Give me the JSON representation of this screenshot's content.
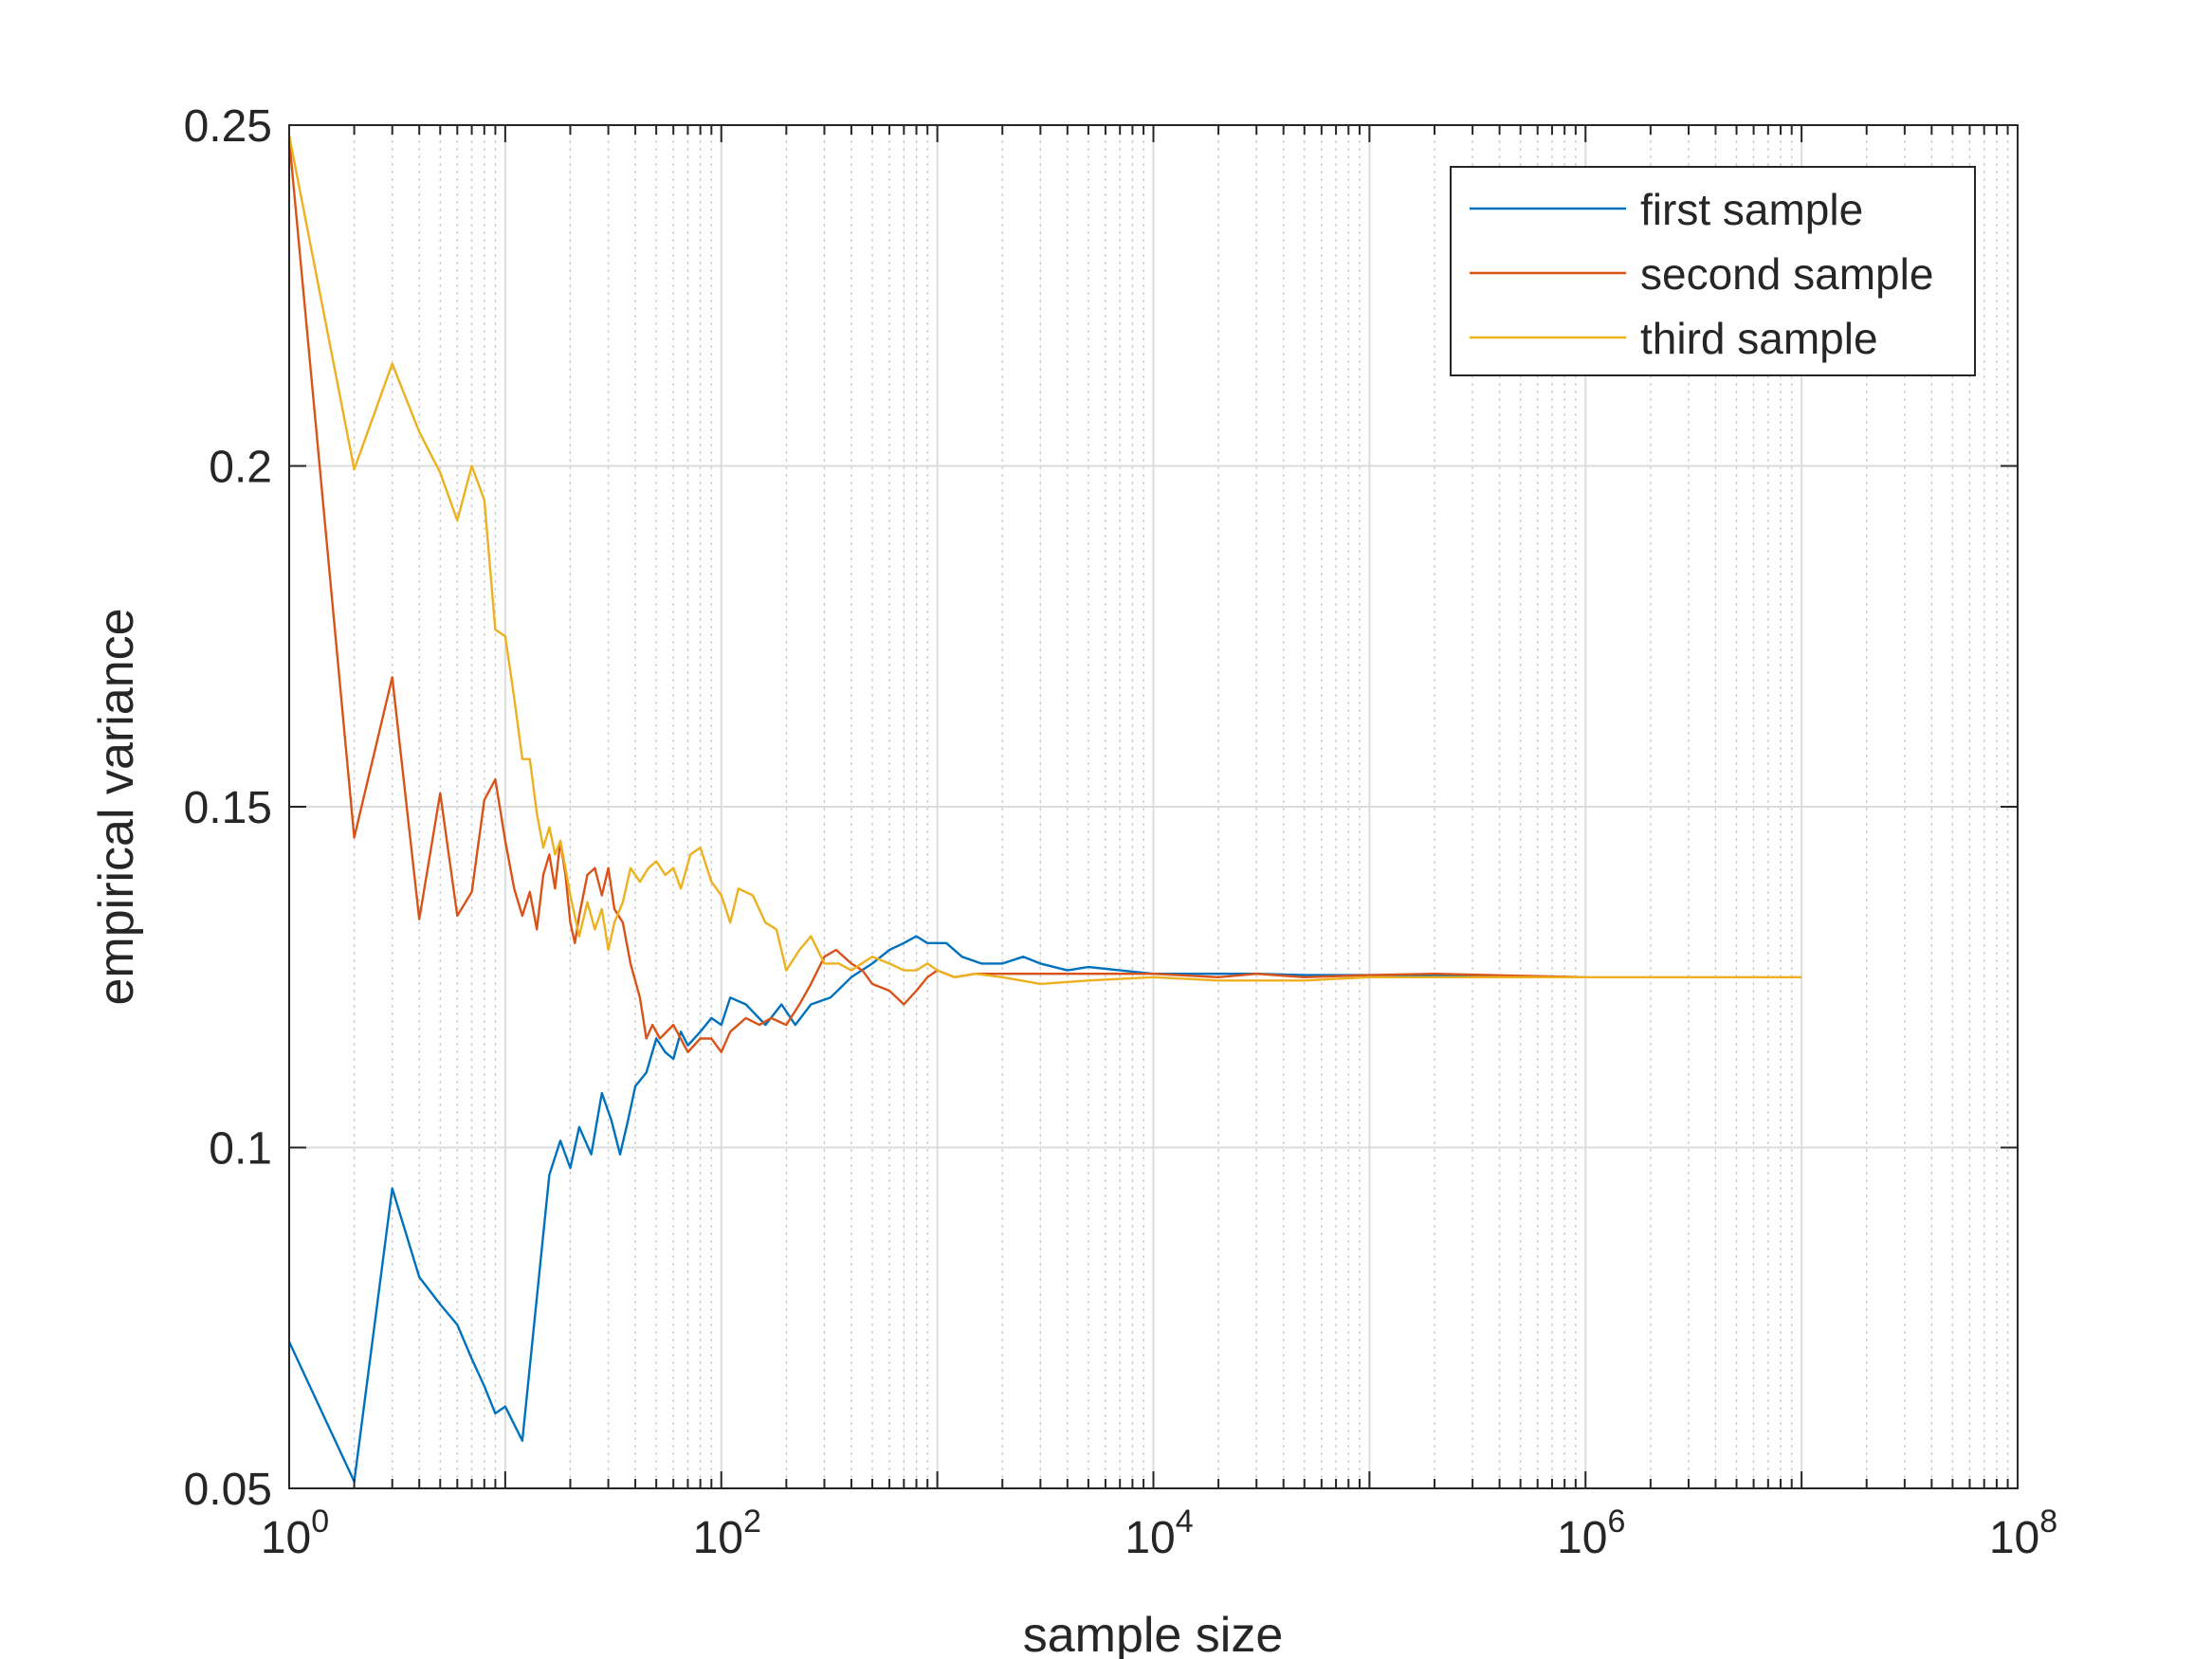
{
  "chart_data": {
    "type": "line",
    "xscale": "log",
    "xlim": [
      1,
      100000000
    ],
    "ylim": [
      0.05,
      0.25
    ],
    "xlabel": "sample size",
    "ylabel": "empirical variance",
    "grid": true,
    "legend_position": "top-right",
    "x_ticks": [
      {
        "value": 1,
        "base": "10",
        "exp": "0"
      },
      {
        "value": 100,
        "base": "10",
        "exp": "2"
      },
      {
        "value": 10000,
        "base": "10",
        "exp": "4"
      },
      {
        "value": 1000000,
        "base": "10",
        "exp": "6"
      },
      {
        "value": 100000000,
        "base": "10",
        "exp": "8"
      }
    ],
    "y_ticks": [
      {
        "value": 0.05,
        "label": "0.05"
      },
      {
        "value": 0.1,
        "label": "0.1"
      },
      {
        "value": 0.15,
        "label": "0.15"
      },
      {
        "value": 0.2,
        "label": "0.2"
      },
      {
        "value": 0.25,
        "label": "0.25"
      }
    ],
    "series": [
      {
        "name": "first sample",
        "color": "#0072BD",
        "points": [
          [
            1,
            0.0715
          ],
          [
            2,
            0.051
          ],
          [
            3,
            0.094
          ],
          [
            4,
            0.081
          ],
          [
            5,
            0.077
          ],
          [
            6,
            0.074
          ],
          [
            7,
            0.069
          ],
          [
            8,
            0.065
          ],
          [
            9,
            0.061
          ],
          [
            10,
            0.062
          ],
          [
            12,
            0.057
          ],
          [
            14,
            0.078
          ],
          [
            16,
            0.096
          ],
          [
            18,
            0.101
          ],
          [
            20,
            0.097
          ],
          [
            22,
            0.103
          ],
          [
            25,
            0.099
          ],
          [
            28,
            0.108
          ],
          [
            31,
            0.104
          ],
          [
            34,
            0.099
          ],
          [
            37,
            0.104
          ],
          [
            40,
            0.109
          ],
          [
            45,
            0.111
          ],
          [
            50,
            0.116
          ],
          [
            55,
            0.114
          ],
          [
            60,
            0.113
          ],
          [
            65,
            0.117
          ],
          [
            70,
            0.115
          ],
          [
            80,
            0.117
          ],
          [
            90,
            0.119
          ],
          [
            100,
            0.118
          ],
          [
            110,
            0.122
          ],
          [
            130,
            0.121
          ],
          [
            160,
            0.118
          ],
          [
            190,
            0.121
          ],
          [
            220,
            0.118
          ],
          [
            260,
            0.121
          ],
          [
            320,
            0.122
          ],
          [
            400,
            0.125
          ],
          [
            500,
            0.127
          ],
          [
            600,
            0.129
          ],
          [
            700,
            0.13
          ],
          [
            800,
            0.131
          ],
          [
            900,
            0.13
          ],
          [
            1100,
            0.13
          ],
          [
            1300,
            0.128
          ],
          [
            1600,
            0.127
          ],
          [
            2000,
            0.127
          ],
          [
            2500,
            0.128
          ],
          [
            3000,
            0.127
          ],
          [
            4000,
            0.126
          ],
          [
            5000,
            0.1265
          ],
          [
            7000,
            0.126
          ],
          [
            10000,
            0.1255
          ],
          [
            15000,
            0.1255
          ],
          [
            20000,
            0.1255
          ],
          [
            30000,
            0.1255
          ],
          [
            50000,
            0.1253
          ],
          [
            100000,
            0.1253
          ],
          [
            300000,
            0.1252
          ],
          [
            1000000,
            0.125
          ]
        ]
      },
      {
        "name": "second sample",
        "color": "#D95319",
        "points": [
          [
            1,
            0.248
          ],
          [
            2,
            0.1455
          ],
          [
            3,
            0.169
          ],
          [
            4,
            0.1335
          ],
          [
            5,
            0.152
          ],
          [
            6,
            0.134
          ],
          [
            7,
            0.1375
          ],
          [
            8,
            0.151
          ],
          [
            9,
            0.154
          ],
          [
            10,
            0.145
          ],
          [
            11,
            0.138
          ],
          [
            12,
            0.134
          ],
          [
            13,
            0.1375
          ],
          [
            14,
            0.132
          ],
          [
            15,
            0.14
          ],
          [
            16,
            0.143
          ],
          [
            17,
            0.138
          ],
          [
            18,
            0.145
          ],
          [
            19,
            0.14
          ],
          [
            20,
            0.133
          ],
          [
            21,
            0.13
          ],
          [
            22,
            0.134
          ],
          [
            24,
            0.14
          ],
          [
            26,
            0.141
          ],
          [
            28,
            0.137
          ],
          [
            30,
            0.141
          ],
          [
            32,
            0.135
          ],
          [
            35,
            0.133
          ],
          [
            38,
            0.127
          ],
          [
            42,
            0.122
          ],
          [
            45,
            0.116
          ],
          [
            48,
            0.118
          ],
          [
            52,
            0.116
          ],
          [
            60,
            0.118
          ],
          [
            70,
            0.114
          ],
          [
            80,
            0.116
          ],
          [
            90,
            0.116
          ],
          [
            100,
            0.114
          ],
          [
            110,
            0.117
          ],
          [
            130,
            0.119
          ],
          [
            150,
            0.118
          ],
          [
            170,
            0.119
          ],
          [
            200,
            0.118
          ],
          [
            230,
            0.121
          ],
          [
            260,
            0.124
          ],
          [
            300,
            0.128
          ],
          [
            340,
            0.129
          ],
          [
            400,
            0.127
          ],
          [
            450,
            0.126
          ],
          [
            500,
            0.124
          ],
          [
            600,
            0.123
          ],
          [
            700,
            0.121
          ],
          [
            800,
            0.123
          ],
          [
            900,
            0.125
          ],
          [
            1000,
            0.126
          ],
          [
            1200,
            0.125
          ],
          [
            1500,
            0.1255
          ],
          [
            2000,
            0.1255
          ],
          [
            3000,
            0.1255
          ],
          [
            5000,
            0.1255
          ],
          [
            10000,
            0.1255
          ],
          [
            20000,
            0.125
          ],
          [
            30000,
            0.1255
          ],
          [
            50000,
            0.125
          ],
          [
            100000,
            0.1253
          ],
          [
            200000,
            0.1255
          ],
          [
            500000,
            0.1252
          ],
          [
            1000000,
            0.125
          ]
        ]
      },
      {
        "name": "third sample",
        "color": "#EDB120",
        "points": [
          [
            1,
            0.2485
          ],
          [
            2,
            0.1995
          ],
          [
            3,
            0.215
          ],
          [
            4,
            0.205
          ],
          [
            5,
            0.199
          ],
          [
            6,
            0.192
          ],
          [
            7,
            0.2
          ],
          [
            8,
            0.195
          ],
          [
            9,
            0.176
          ],
          [
            10,
            0.175
          ],
          [
            11,
            0.166
          ],
          [
            12,
            0.157
          ],
          [
            13,
            0.157
          ],
          [
            14,
            0.149
          ],
          [
            15,
            0.144
          ],
          [
            16,
            0.147
          ],
          [
            17,
            0.143
          ],
          [
            18,
            0.145
          ],
          [
            19,
            0.141
          ],
          [
            20,
            0.137
          ],
          [
            22,
            0.131
          ],
          [
            24,
            0.136
          ],
          [
            26,
            0.132
          ],
          [
            28,
            0.135
          ],
          [
            30,
            0.129
          ],
          [
            32,
            0.133
          ],
          [
            35,
            0.136
          ],
          [
            38,
            0.141
          ],
          [
            42,
            0.139
          ],
          [
            46,
            0.141
          ],
          [
            50,
            0.142
          ],
          [
            55,
            0.14
          ],
          [
            60,
            0.141
          ],
          [
            65,
            0.138
          ],
          [
            72,
            0.143
          ],
          [
            80,
            0.144
          ],
          [
            90,
            0.139
          ],
          [
            100,
            0.137
          ],
          [
            110,
            0.133
          ],
          [
            120,
            0.138
          ],
          [
            140,
            0.137
          ],
          [
            160,
            0.133
          ],
          [
            180,
            0.132
          ],
          [
            200,
            0.126
          ],
          [
            230,
            0.129
          ],
          [
            260,
            0.131
          ],
          [
            300,
            0.127
          ],
          [
            350,
            0.127
          ],
          [
            400,
            0.126
          ],
          [
            500,
            0.128
          ],
          [
            600,
            0.127
          ],
          [
            700,
            0.126
          ],
          [
            800,
            0.126
          ],
          [
            900,
            0.127
          ],
          [
            1000,
            0.126
          ],
          [
            1200,
            0.125
          ],
          [
            1500,
            0.1255
          ],
          [
            2000,
            0.125
          ],
          [
            3000,
            0.124
          ],
          [
            5000,
            0.1245
          ],
          [
            10000,
            0.125
          ],
          [
            20000,
            0.1245
          ],
          [
            50000,
            0.1245
          ],
          [
            100000,
            0.125
          ],
          [
            300000,
            0.125
          ],
          [
            1000000,
            0.125
          ],
          [
            3000000,
            0.125
          ],
          [
            10000000,
            0.125
          ]
        ]
      }
    ]
  }
}
